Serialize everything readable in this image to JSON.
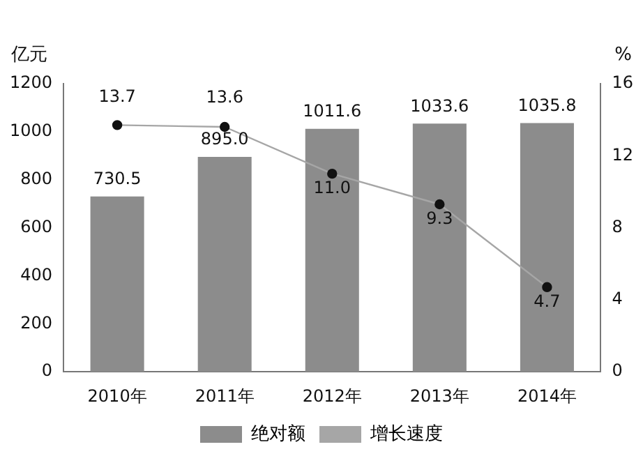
{
  "chart_data": {
    "type": "bar",
    "ylabel": "亿元",
    "y2label": "%",
    "categories": [
      "2010年",
      "2011年",
      "2012年",
      "2013年",
      "2014年"
    ],
    "series": [
      {
        "name": "绝对额",
        "color": "#8c8c8c",
        "values": [
          730.5,
          895.0,
          1011.6,
          1033.6,
          1035.8
        ],
        "value_labels": [
          "730.5",
          "895.0",
          "1011.6",
          "1033.6",
          "1035.8"
        ]
      },
      {
        "name": "增长速度",
        "type": "line",
        "axis": "y2",
        "color": "#a6a6a6",
        "values": [
          13.7,
          13.6,
          11.0,
          9.3,
          4.7
        ],
        "value_labels": [
          "13.7",
          "13.6",
          "11.0",
          "9.3",
          "4.7"
        ]
      }
    ],
    "ylim": [
      0,
      1200
    ],
    "yticks": [
      0,
      200,
      400,
      600,
      800,
      1000,
      1200
    ],
    "y2lim": [
      0,
      16
    ],
    "y2ticks": [
      0,
      4,
      8,
      12,
      16
    ],
    "grid": false,
    "legend": "bottom",
    "marker": "circle",
    "line_style": "solid"
  }
}
